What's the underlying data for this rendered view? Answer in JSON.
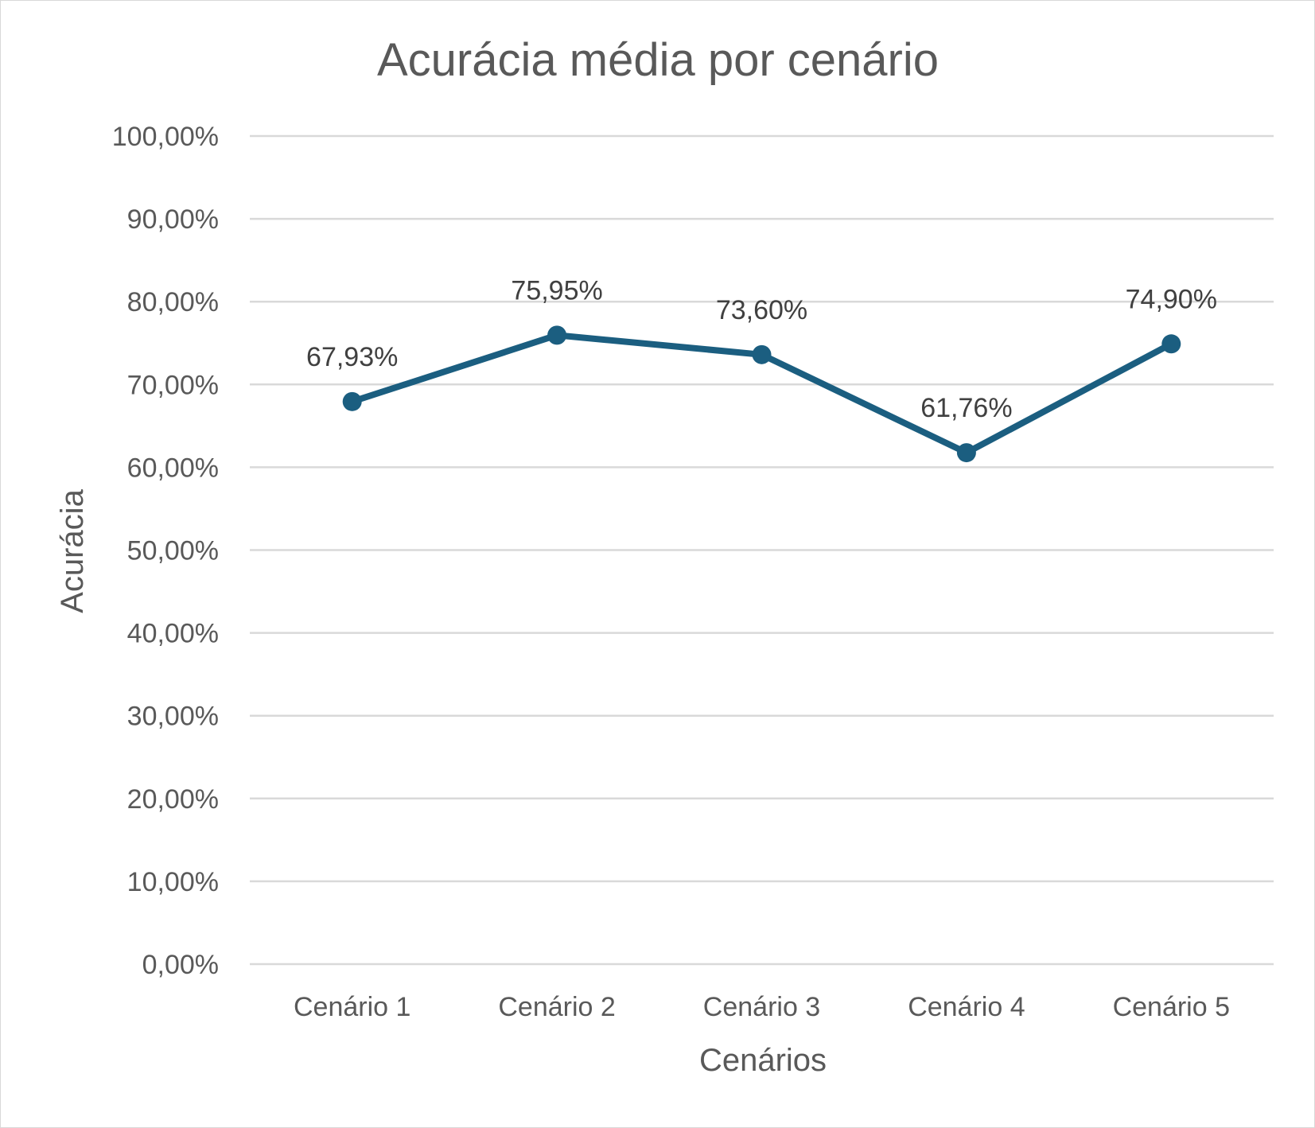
{
  "chart_data": {
    "type": "line",
    "title": "Acurácia média por cenário",
    "xlabel": "Cenários",
    "ylabel": "Acurácia",
    "categories": [
      "Cenário 1",
      "Cenário 2",
      "Cenário 3",
      "Cenário 4",
      "Cenário 5"
    ],
    "series": [
      {
        "values": [
          67.93,
          75.95,
          73.6,
          61.76,
          74.9
        ],
        "labels": [
          "67,93%",
          "75,95%",
          "73,60%",
          "61,76%",
          "74,90%"
        ],
        "color": "#1b5e80"
      }
    ],
    "ylim": [
      0,
      100
    ],
    "yticks": [
      0,
      10,
      20,
      30,
      40,
      50,
      60,
      70,
      80,
      90,
      100
    ],
    "ytick_labels": [
      "0,00%",
      "10,00%",
      "20,00%",
      "30,00%",
      "40,00%",
      "50,00%",
      "60,00%",
      "70,00%",
      "80,00%",
      "90,00%",
      "100,00%"
    ],
    "grid": true,
    "gridline_color": "#d9d9d9",
    "legend": "none"
  }
}
